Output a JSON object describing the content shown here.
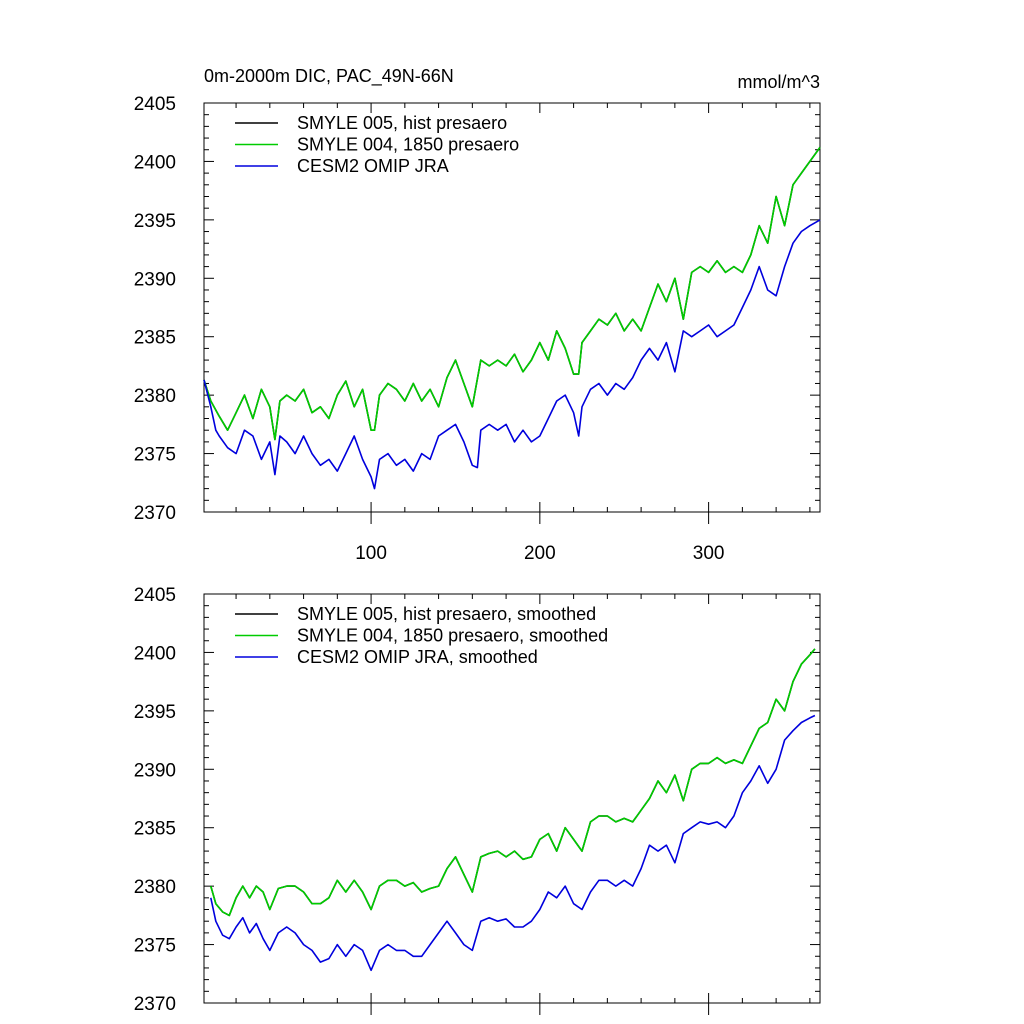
{
  "figure": {
    "title_left": "0m-2000m DIC, PAC_49N-66N",
    "title_right": "mmol/m^3"
  },
  "chart_data": [
    {
      "type": "line",
      "title": "0m-2000m DIC, PAC_49N-66N",
      "units": "mmol/m^3",
      "xlim": [
        1,
        366
      ],
      "ylim": [
        2370,
        2405
      ],
      "xticks": [
        100,
        200,
        300
      ],
      "yticks": [
        2370,
        2375,
        2380,
        2385,
        2390,
        2395,
        2400,
        2405
      ],
      "grid": false,
      "legend_position": "top-left",
      "series": [
        {
          "name": "SMYLE 005, hist presaero",
          "color": "#000000",
          "x": [
            1,
            5,
            10,
            15,
            20,
            25,
            30,
            35,
            40,
            43,
            46,
            50,
            55,
            60,
            65,
            70,
            75,
            80,
            85,
            90,
            95,
            100,
            102,
            105,
            110,
            115,
            120,
            125,
            130,
            135,
            140,
            145,
            150,
            155,
            160,
            165,
            170,
            175,
            180,
            185,
            190,
            195,
            200,
            205,
            210,
            215,
            220,
            223,
            225,
            230,
            235,
            240,
            245,
            250,
            255,
            260,
            265,
            270,
            275,
            280,
            285,
            290,
            295,
            300,
            305,
            310,
            315,
            320,
            325,
            330,
            335,
            340,
            345,
            350,
            355,
            360,
            366
          ],
          "y": [
            2381.3,
            2379.5,
            2378.2,
            2377.0,
            2378.5,
            2380.0,
            2378.0,
            2380.5,
            2379.0,
            2376.2,
            2379.5,
            2380.0,
            2379.5,
            2380.5,
            2378.5,
            2379.0,
            2378.0,
            2380.0,
            2381.2,
            2379.0,
            2380.5,
            2377.0,
            2377.0,
            2380.0,
            2381.0,
            2380.5,
            2379.5,
            2381.0,
            2379.5,
            2380.5,
            2379.0,
            2381.5,
            2383.0,
            2381.0,
            2379.0,
            2383.0,
            2382.5,
            2383.0,
            2382.5,
            2383.5,
            2382.0,
            2383.0,
            2384.5,
            2383.0,
            2385.5,
            2384.0,
            2381.8,
            2381.8,
            2384.5,
            2385.5,
            2386.5,
            2386.0,
            2387.0,
            2385.5,
            2386.5,
            2385.5,
            2387.5,
            2389.5,
            2388.0,
            2390.0,
            2386.5,
            2390.5,
            2391.0,
            2390.5,
            2391.5,
            2390.5,
            2391.0,
            2390.5,
            2392.0,
            2394.5,
            2393.0,
            2397.0,
            2394.5,
            2398.0,
            2399.0,
            2400.0,
            2401.2
          ]
        },
        {
          "name": "SMYLE 004, 1850 presaero",
          "color": "#00cc00",
          "x": [
            1,
            5,
            10,
            15,
            20,
            25,
            30,
            35,
            40,
            43,
            46,
            50,
            55,
            60,
            65,
            70,
            75,
            80,
            85,
            90,
            95,
            100,
            102,
            105,
            110,
            115,
            120,
            125,
            130,
            135,
            140,
            145,
            150,
            155,
            160,
            165,
            170,
            175,
            180,
            185,
            190,
            195,
            200,
            205,
            210,
            215,
            220,
            223,
            225,
            230,
            235,
            240,
            245,
            250,
            255,
            260,
            265,
            270,
            275,
            280,
            285,
            290,
            295,
            300,
            305,
            310,
            315,
            320,
            325,
            330,
            335,
            340,
            345,
            350,
            355,
            360,
            366
          ],
          "y": [
            2381.3,
            2379.5,
            2378.2,
            2377.0,
            2378.5,
            2380.0,
            2378.0,
            2380.5,
            2379.0,
            2376.2,
            2379.5,
            2380.0,
            2379.5,
            2380.5,
            2378.5,
            2379.0,
            2378.0,
            2380.0,
            2381.2,
            2379.0,
            2380.5,
            2377.0,
            2377.0,
            2380.0,
            2381.0,
            2380.5,
            2379.5,
            2381.0,
            2379.5,
            2380.5,
            2379.0,
            2381.5,
            2383.0,
            2381.0,
            2379.0,
            2383.0,
            2382.5,
            2383.0,
            2382.5,
            2383.5,
            2382.0,
            2383.0,
            2384.5,
            2383.0,
            2385.5,
            2384.0,
            2381.8,
            2381.8,
            2384.5,
            2385.5,
            2386.5,
            2386.0,
            2387.0,
            2385.5,
            2386.5,
            2385.5,
            2387.5,
            2389.5,
            2388.0,
            2390.0,
            2386.5,
            2390.5,
            2391.0,
            2390.5,
            2391.5,
            2390.5,
            2391.0,
            2390.5,
            2392.0,
            2394.5,
            2393.0,
            2397.0,
            2394.5,
            2398.0,
            2399.0,
            2400.0,
            2401.2
          ]
        },
        {
          "name": "CESM2 OMIP JRA",
          "color": "#0000dd",
          "x": [
            1,
            5,
            8,
            10,
            15,
            20,
            25,
            30,
            35,
            40,
            43,
            46,
            50,
            55,
            60,
            65,
            70,
            75,
            80,
            85,
            90,
            95,
            100,
            102,
            105,
            110,
            115,
            120,
            125,
            130,
            135,
            140,
            145,
            150,
            155,
            160,
            163,
            165,
            170,
            175,
            180,
            185,
            190,
            195,
            200,
            205,
            210,
            215,
            220,
            223,
            225,
            230,
            235,
            240,
            245,
            250,
            255,
            260,
            265,
            270,
            275,
            280,
            285,
            290,
            295,
            300,
            305,
            310,
            315,
            320,
            325,
            330,
            335,
            340,
            345,
            350,
            355,
            360,
            366
          ],
          "y": [
            2381.3,
            2379.0,
            2377.0,
            2376.5,
            2375.5,
            2375.0,
            2377.0,
            2376.5,
            2374.5,
            2376.0,
            2373.2,
            2376.5,
            2376.0,
            2375.0,
            2376.5,
            2375.0,
            2374.0,
            2374.5,
            2373.5,
            2375.0,
            2376.5,
            2374.5,
            2373.0,
            2372.0,
            2374.5,
            2375.0,
            2374.0,
            2374.5,
            2373.5,
            2375.0,
            2374.5,
            2376.5,
            2377.0,
            2377.5,
            2376.0,
            2374.0,
            2373.8,
            2377.0,
            2377.5,
            2377.0,
            2377.5,
            2376.0,
            2377.0,
            2376.0,
            2376.5,
            2378.0,
            2379.5,
            2380.0,
            2378.5,
            2376.5,
            2379.0,
            2380.5,
            2381.0,
            2380.0,
            2381.0,
            2380.5,
            2381.5,
            2383.0,
            2384.0,
            2383.0,
            2384.5,
            2382.0,
            2385.5,
            2385.0,
            2385.5,
            2386.0,
            2385.0,
            2385.5,
            2386.0,
            2387.5,
            2389.0,
            2391.0,
            2389.0,
            2388.5,
            2391.0,
            2393.0,
            2394.0,
            2394.5,
            2395.0
          ]
        }
      ]
    },
    {
      "type": "line",
      "xlim": [
        1,
        366
      ],
      "ylim": [
        2370,
        2405
      ],
      "xticks": [
        100,
        200,
        300
      ],
      "yticks": [
        2370,
        2375,
        2380,
        2385,
        2390,
        2395,
        2400,
        2405
      ],
      "grid": false,
      "legend_position": "top-left",
      "series": [
        {
          "name": "SMYLE 005, hist presaero, smoothed",
          "color": "#000000",
          "x": [
            5,
            8,
            12,
            16,
            20,
            24,
            28,
            32,
            36,
            40,
            45,
            50,
            55,
            60,
            65,
            70,
            75,
            80,
            85,
            90,
            95,
            100,
            105,
            110,
            115,
            120,
            125,
            130,
            135,
            140,
            145,
            150,
            155,
            160,
            165,
            170,
            175,
            180,
            185,
            190,
            195,
            200,
            205,
            210,
            215,
            220,
            225,
            230,
            235,
            240,
            245,
            250,
            255,
            260,
            265,
            270,
            275,
            280,
            285,
            290,
            295,
            300,
            305,
            310,
            315,
            320,
            325,
            330,
            335,
            340,
            345,
            350,
            355,
            360,
            363
          ],
          "y": [
            2380.0,
            2378.5,
            2377.8,
            2377.5,
            2379.0,
            2380.0,
            2379.0,
            2380.0,
            2379.5,
            2378.0,
            2379.8,
            2380.0,
            2380.0,
            2379.5,
            2378.5,
            2378.5,
            2379.0,
            2380.5,
            2379.5,
            2380.5,
            2379.5,
            2378.0,
            2380.0,
            2380.5,
            2380.5,
            2380.0,
            2380.3,
            2379.5,
            2379.8,
            2380.0,
            2381.5,
            2382.5,
            2381.0,
            2379.5,
            2382.5,
            2382.8,
            2383.0,
            2382.5,
            2383.0,
            2382.3,
            2382.5,
            2384.0,
            2384.5,
            2383.0,
            2385.0,
            2384.0,
            2383.0,
            2385.5,
            2386.0,
            2386.0,
            2385.5,
            2385.8,
            2385.5,
            2386.5,
            2387.5,
            2389.0,
            2388.0,
            2389.5,
            2387.3,
            2390.0,
            2390.5,
            2390.5,
            2391.0,
            2390.5,
            2390.8,
            2390.5,
            2392.0,
            2393.5,
            2394.0,
            2396.0,
            2395.0,
            2397.5,
            2399.0,
            2399.8,
            2400.3
          ]
        },
        {
          "name": "SMYLE 004, 1850 presaero, smoothed",
          "color": "#00cc00",
          "x": [
            5,
            8,
            12,
            16,
            20,
            24,
            28,
            32,
            36,
            40,
            45,
            50,
            55,
            60,
            65,
            70,
            75,
            80,
            85,
            90,
            95,
            100,
            105,
            110,
            115,
            120,
            125,
            130,
            135,
            140,
            145,
            150,
            155,
            160,
            165,
            170,
            175,
            180,
            185,
            190,
            195,
            200,
            205,
            210,
            215,
            220,
            225,
            230,
            235,
            240,
            245,
            250,
            255,
            260,
            265,
            270,
            275,
            280,
            285,
            290,
            295,
            300,
            305,
            310,
            315,
            320,
            325,
            330,
            335,
            340,
            345,
            350,
            355,
            360,
            363
          ],
          "y": [
            2380.0,
            2378.5,
            2377.8,
            2377.5,
            2379.0,
            2380.0,
            2379.0,
            2380.0,
            2379.5,
            2378.0,
            2379.8,
            2380.0,
            2380.0,
            2379.5,
            2378.5,
            2378.5,
            2379.0,
            2380.5,
            2379.5,
            2380.5,
            2379.5,
            2378.0,
            2380.0,
            2380.5,
            2380.5,
            2380.0,
            2380.3,
            2379.5,
            2379.8,
            2380.0,
            2381.5,
            2382.5,
            2381.0,
            2379.5,
            2382.5,
            2382.8,
            2383.0,
            2382.5,
            2383.0,
            2382.3,
            2382.5,
            2384.0,
            2384.5,
            2383.0,
            2385.0,
            2384.0,
            2383.0,
            2385.5,
            2386.0,
            2386.0,
            2385.5,
            2385.8,
            2385.5,
            2386.5,
            2387.5,
            2389.0,
            2388.0,
            2389.5,
            2387.3,
            2390.0,
            2390.5,
            2390.5,
            2391.0,
            2390.5,
            2390.8,
            2390.5,
            2392.0,
            2393.5,
            2394.0,
            2396.0,
            2395.0,
            2397.5,
            2399.0,
            2399.8,
            2400.3
          ]
        },
        {
          "name": "CESM2 OMIP JRA, smoothed",
          "color": "#0000dd",
          "x": [
            5,
            8,
            12,
            16,
            20,
            24,
            28,
            32,
            36,
            40,
            45,
            50,
            55,
            60,
            65,
            70,
            75,
            80,
            85,
            90,
            95,
            100,
            105,
            110,
            115,
            120,
            125,
            130,
            135,
            140,
            145,
            150,
            155,
            160,
            165,
            170,
            175,
            180,
            185,
            190,
            195,
            200,
            205,
            210,
            215,
            220,
            225,
            230,
            235,
            240,
            245,
            250,
            255,
            260,
            265,
            270,
            275,
            280,
            285,
            290,
            295,
            300,
            305,
            310,
            315,
            320,
            325,
            330,
            335,
            340,
            345,
            350,
            355,
            360,
            363
          ],
          "y": [
            2379.0,
            2377.0,
            2375.8,
            2375.5,
            2376.5,
            2377.3,
            2376.0,
            2376.8,
            2375.5,
            2374.5,
            2376.0,
            2376.5,
            2376.0,
            2375.0,
            2374.5,
            2373.5,
            2373.8,
            2375.0,
            2374.0,
            2375.0,
            2374.5,
            2372.8,
            2374.5,
            2375.0,
            2374.5,
            2374.5,
            2374.0,
            2374.0,
            2375.0,
            2376.0,
            2377.0,
            2376.0,
            2375.0,
            2374.5,
            2377.0,
            2377.3,
            2377.0,
            2377.2,
            2376.5,
            2376.5,
            2377.0,
            2378.0,
            2379.5,
            2379.0,
            2380.0,
            2378.5,
            2378.0,
            2379.5,
            2380.5,
            2380.5,
            2380.0,
            2380.5,
            2380.0,
            2381.5,
            2383.5,
            2383.0,
            2383.5,
            2382.0,
            2384.5,
            2385.0,
            2385.5,
            2385.3,
            2385.5,
            2385.0,
            2386.0,
            2388.0,
            2389.0,
            2390.3,
            2388.8,
            2390.0,
            2392.5,
            2393.3,
            2394.0,
            2394.4,
            2394.6
          ]
        }
      ]
    }
  ]
}
